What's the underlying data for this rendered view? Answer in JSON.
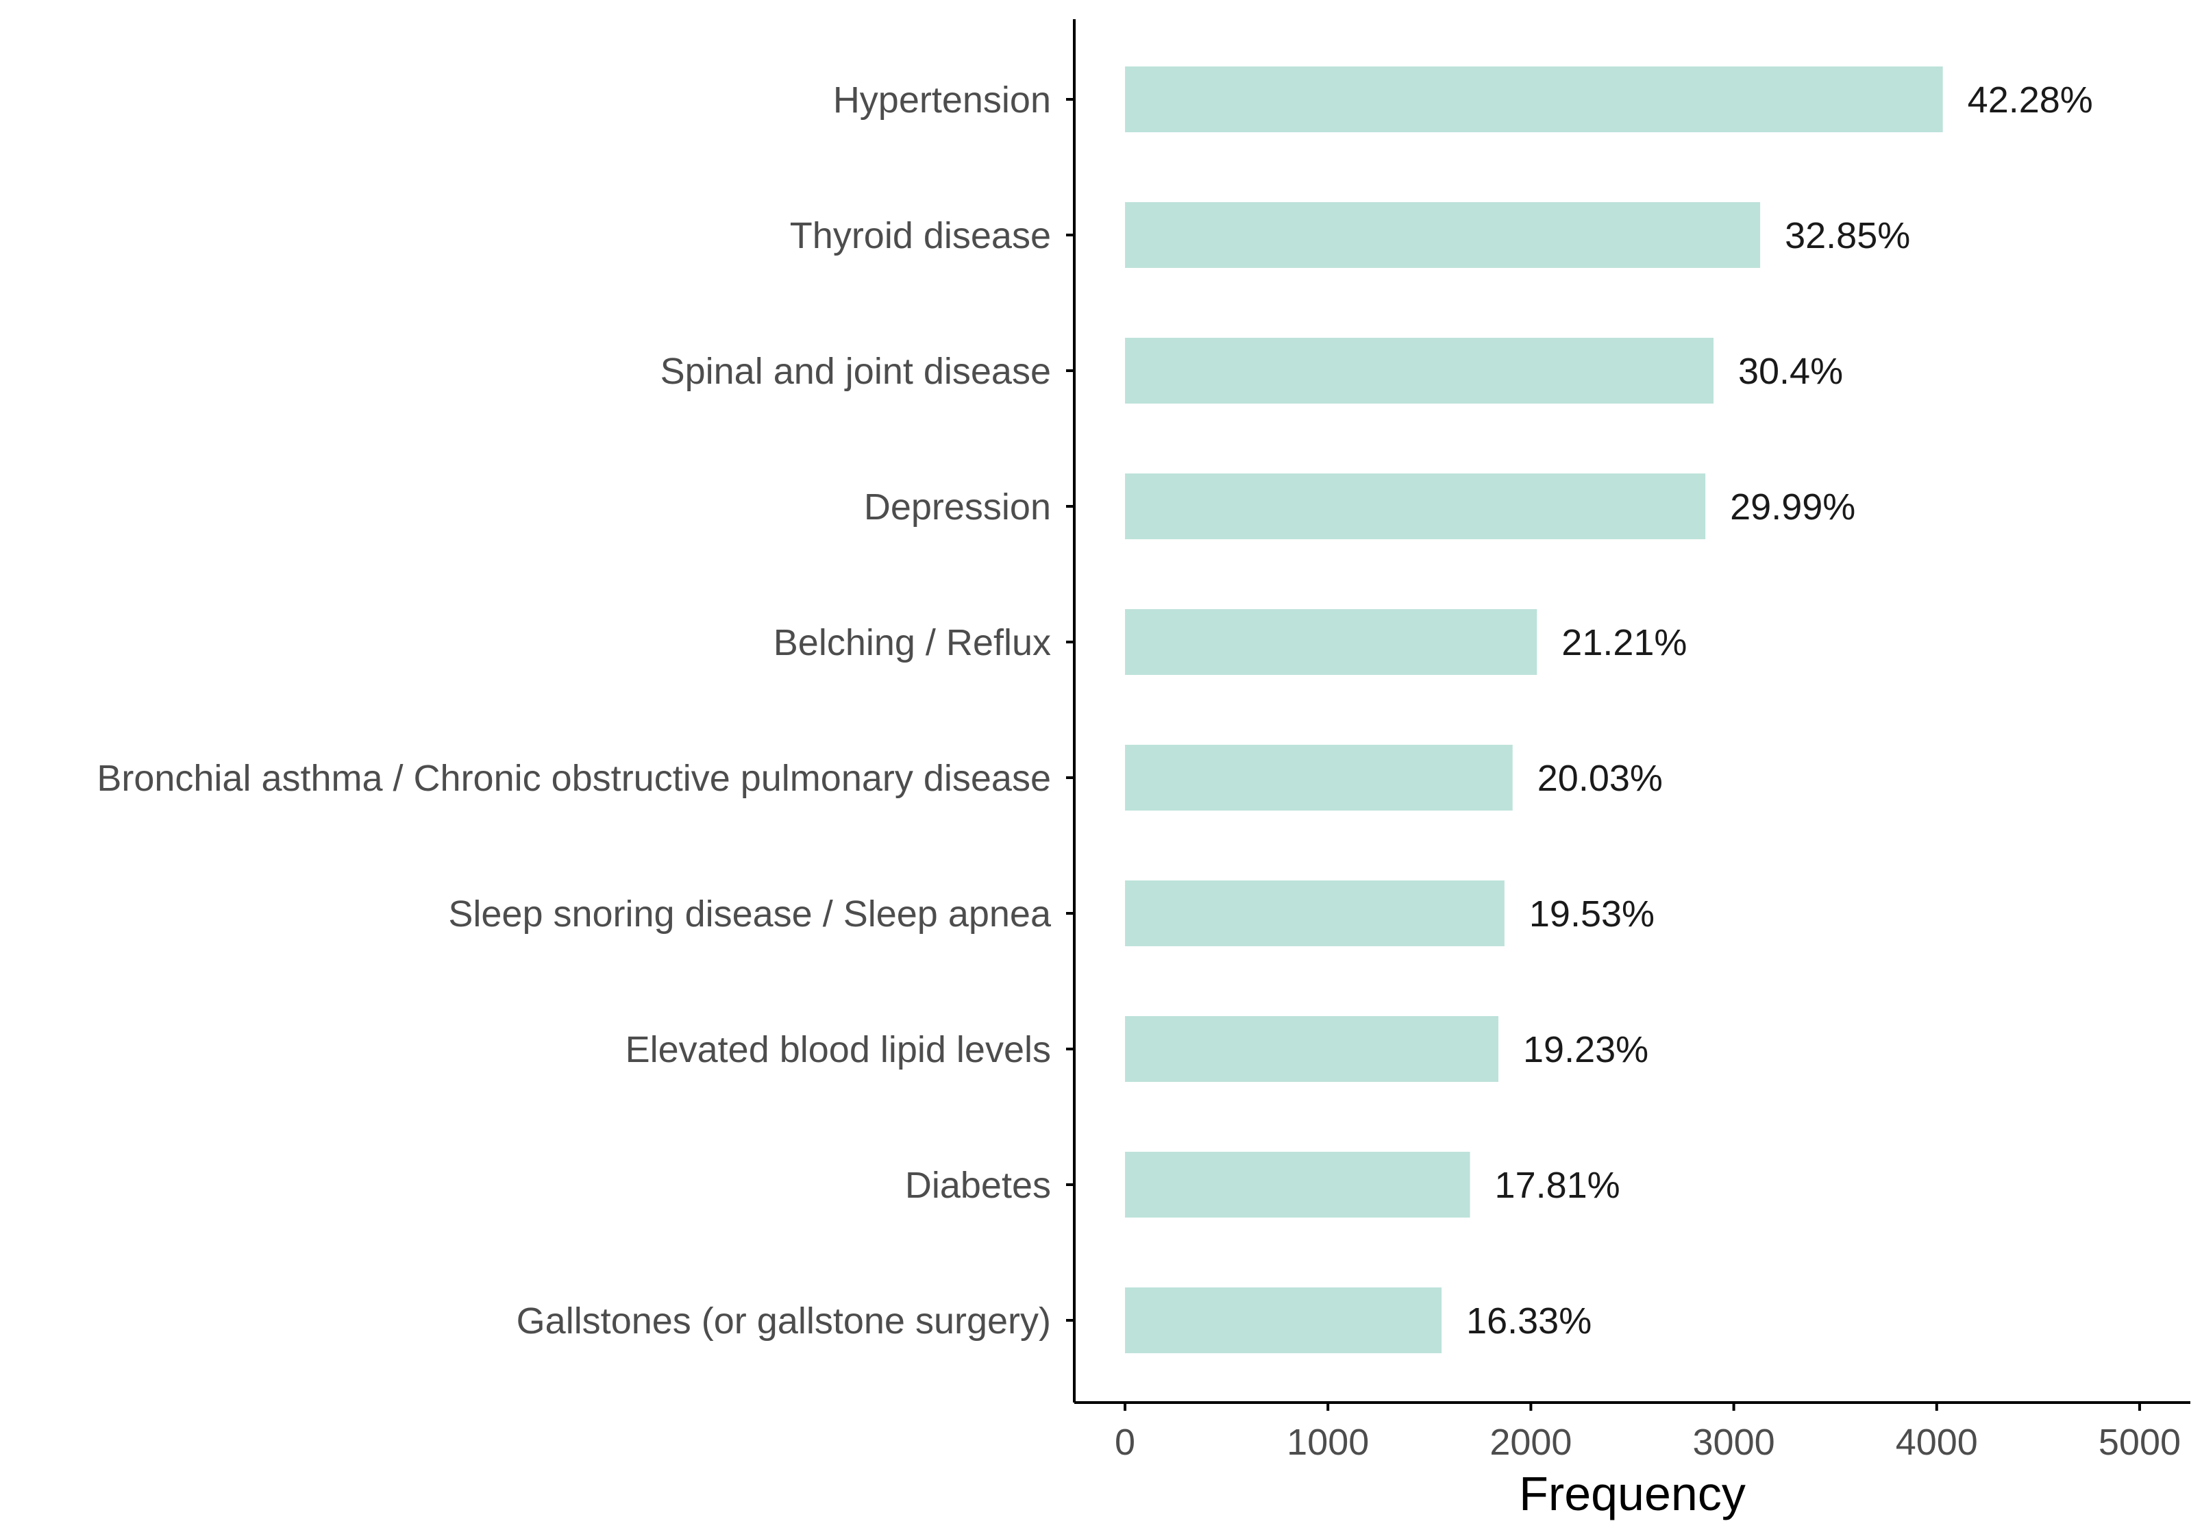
{
  "chart_data": {
    "type": "bar",
    "orientation": "horizontal",
    "categories": [
      "Hypertension",
      "Thyroid disease",
      "Spinal and joint disease",
      "Depression",
      "Belching / Reflux",
      "Bronchial asthma / Chronic obstructive pulmonary disease",
      "Sleep snoring disease / Sleep apnea",
      "Elevated blood lipid levels",
      "Diabetes",
      "Gallstones (or gallstone surgery)"
    ],
    "values": [
      4030,
      3130,
      2900,
      2860,
      2030,
      1910,
      1870,
      1840,
      1700,
      1560
    ],
    "value_labels": [
      "42.28%",
      "32.85%",
      "30.4%",
      "29.99%",
      "21.21%",
      "20.03%",
      "19.53%",
      "19.23%",
      "17.81%",
      "16.33%"
    ],
    "xlabel": "Frequency",
    "ylabel": "",
    "xlim": [
      -250,
      5250
    ],
    "xticks": [
      0,
      1000,
      2000,
      3000,
      4000,
      5000
    ],
    "xtick_labels": [
      "0",
      "1000",
      "2000",
      "3000",
      "4000",
      "5000"
    ],
    "bar_color": "#bde2da",
    "axis_color": "#000000",
    "grid": false,
    "legend": "none"
  }
}
